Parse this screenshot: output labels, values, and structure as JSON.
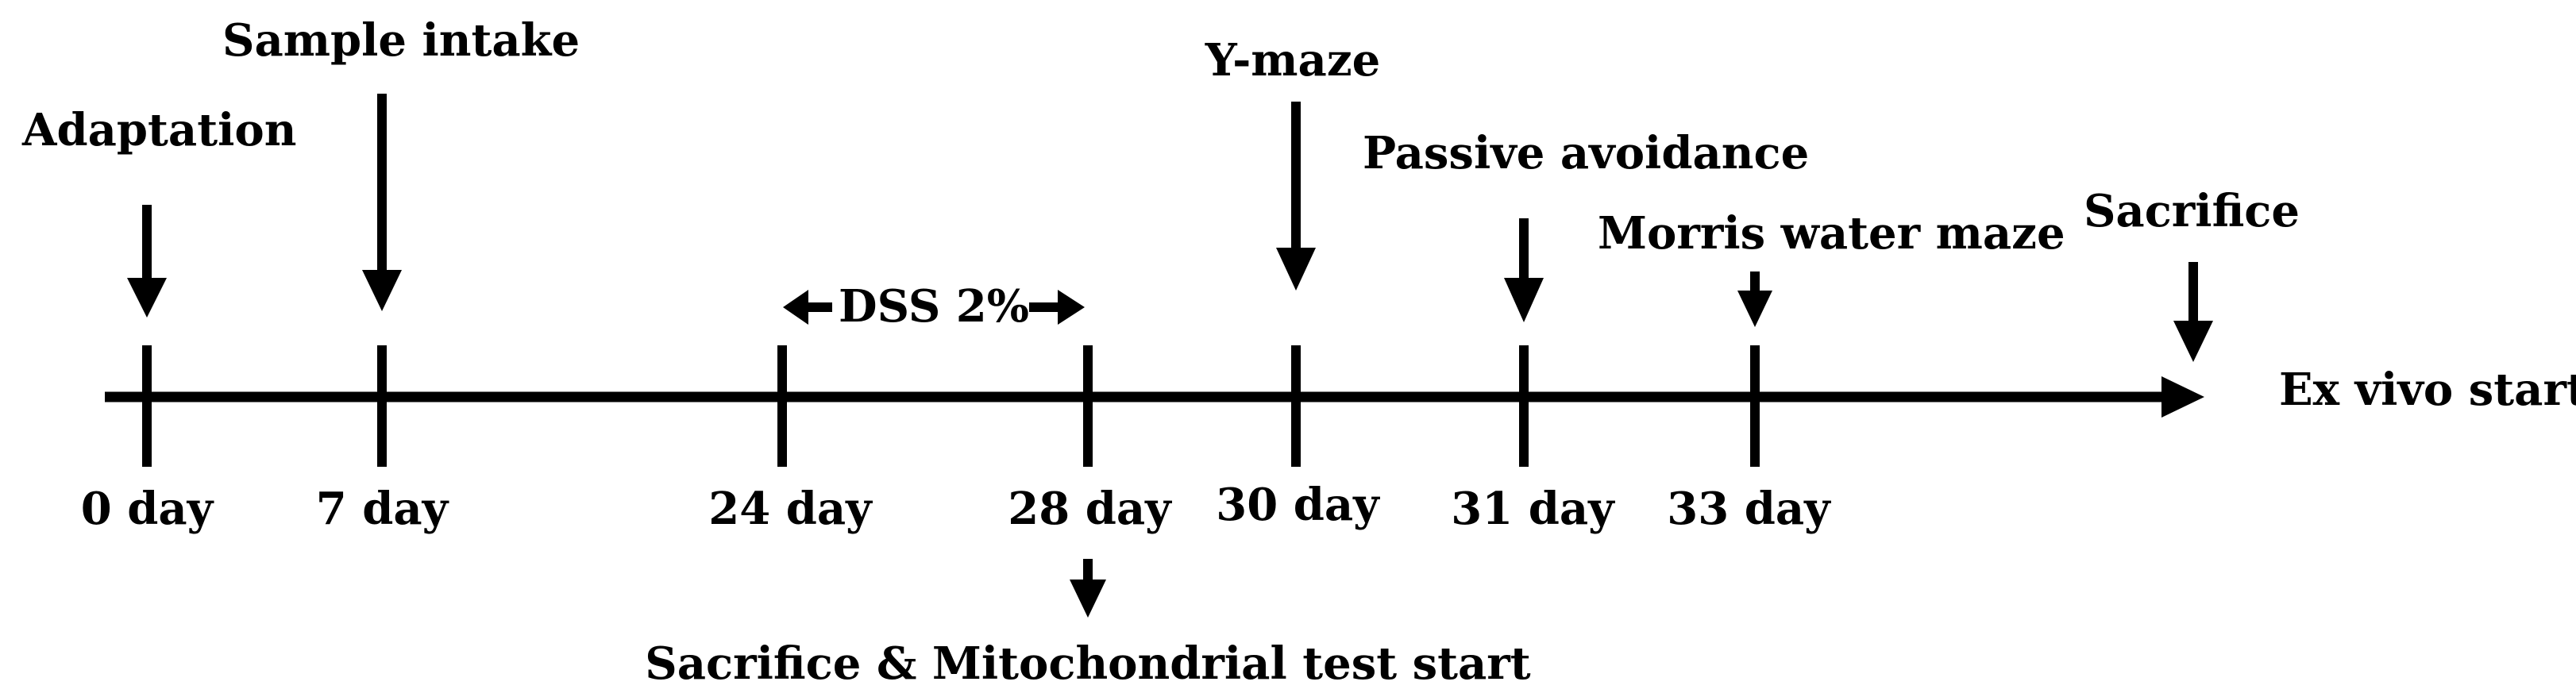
{
  "timeline": {
    "day_labels": [
      "0 day",
      "7 day",
      "24 day",
      "28 day",
      "30 day",
      "31 day",
      "33 day"
    ],
    "end_label": "Ex vivo start"
  },
  "events": {
    "adaptation": "Adaptation",
    "sample_intake": "Sample intake",
    "dss": "DSS 2%",
    "y_maze": "Y-maze",
    "passive_avoidance": "Passive avoidance",
    "morris_water_maze": "Morris water maze",
    "sacrifice": "Sacrifice",
    "sacrifice_mito": "Sacrifice & Mitochondrial test start"
  },
  "colors": {
    "ink": "#000000",
    "background": "#ffffff"
  }
}
